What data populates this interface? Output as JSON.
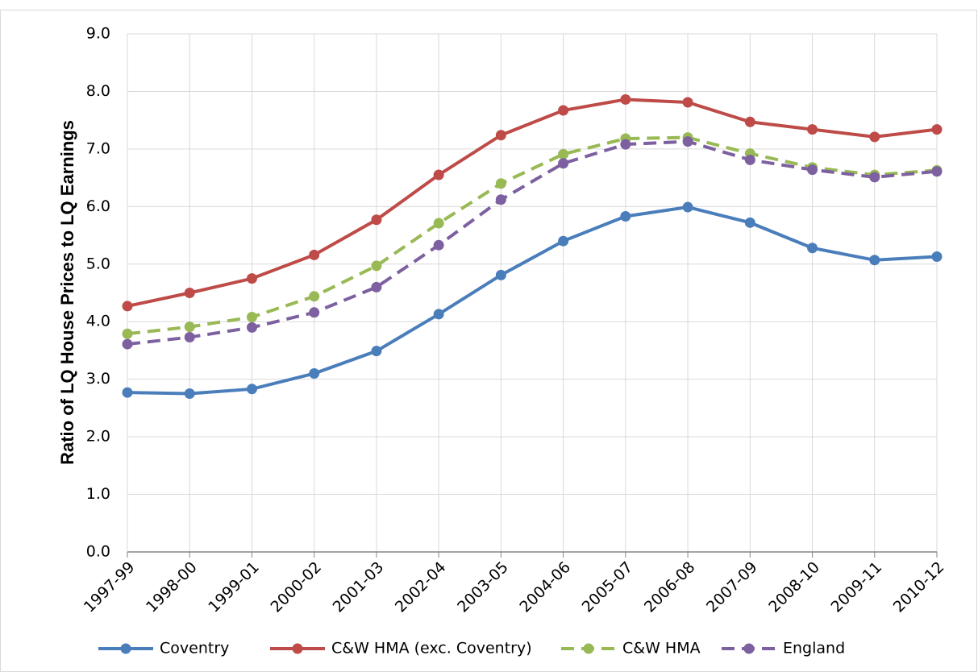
{
  "chart_data": {
    "type": "line",
    "y_label": "Ratio of LQ House Prices to LQ Earnings",
    "categories": [
      "1997-99",
      "1998-00",
      "1999-01",
      "2000-02",
      "2001-03",
      "2002-04",
      "2003-05",
      "2004-06",
      "2005-07",
      "2006-08",
      "2007-09",
      "2008-10",
      "2009-11",
      "2010-12"
    ],
    "series": [
      {
        "name": "Coventry",
        "color": "#4a7ebb",
        "dashed": false,
        "values": [
          2.77,
          2.75,
          2.83,
          3.1,
          3.49,
          4.13,
          4.81,
          5.4,
          5.83,
          5.99,
          5.72,
          5.28,
          5.07,
          5.13
        ]
      },
      {
        "name": "C&W HMA (exc. Coventry)",
        "color": "#be4b48",
        "dashed": false,
        "values": [
          4.27,
          4.5,
          4.75,
          5.16,
          5.77,
          6.55,
          7.24,
          7.67,
          7.86,
          7.81,
          7.47,
          7.34,
          7.21,
          7.34
        ]
      },
      {
        "name": "C&W HMA",
        "color": "#98b954",
        "dashed": true,
        "values": [
          3.79,
          3.91,
          4.08,
          4.44,
          4.97,
          5.71,
          6.4,
          6.91,
          7.18,
          7.2,
          6.92,
          6.68,
          6.55,
          6.63
        ]
      },
      {
        "name": "England",
        "color": "#7d60a0",
        "dashed": true,
        "values": [
          3.61,
          3.73,
          3.9,
          4.16,
          4.6,
          5.33,
          6.12,
          6.75,
          7.08,
          7.13,
          6.81,
          6.64,
          6.51,
          6.61
        ]
      }
    ],
    "ylim": [
      0,
      9
    ],
    "yticks": [
      {
        "value": 0,
        "label": "0.0"
      },
      {
        "value": 1,
        "label": "1.0"
      },
      {
        "value": 2,
        "label": "2.0"
      },
      {
        "value": 3,
        "label": "3.0"
      },
      {
        "value": 4,
        "label": "4.0"
      },
      {
        "value": 5,
        "label": "5.0"
      },
      {
        "value": 6,
        "label": "6.0"
      },
      {
        "value": 7,
        "label": "7.0"
      },
      {
        "value": 8,
        "label": "8.0"
      },
      {
        "value": 9,
        "label": "9.0"
      }
    ],
    "grid": true,
    "legend": "bottom"
  }
}
